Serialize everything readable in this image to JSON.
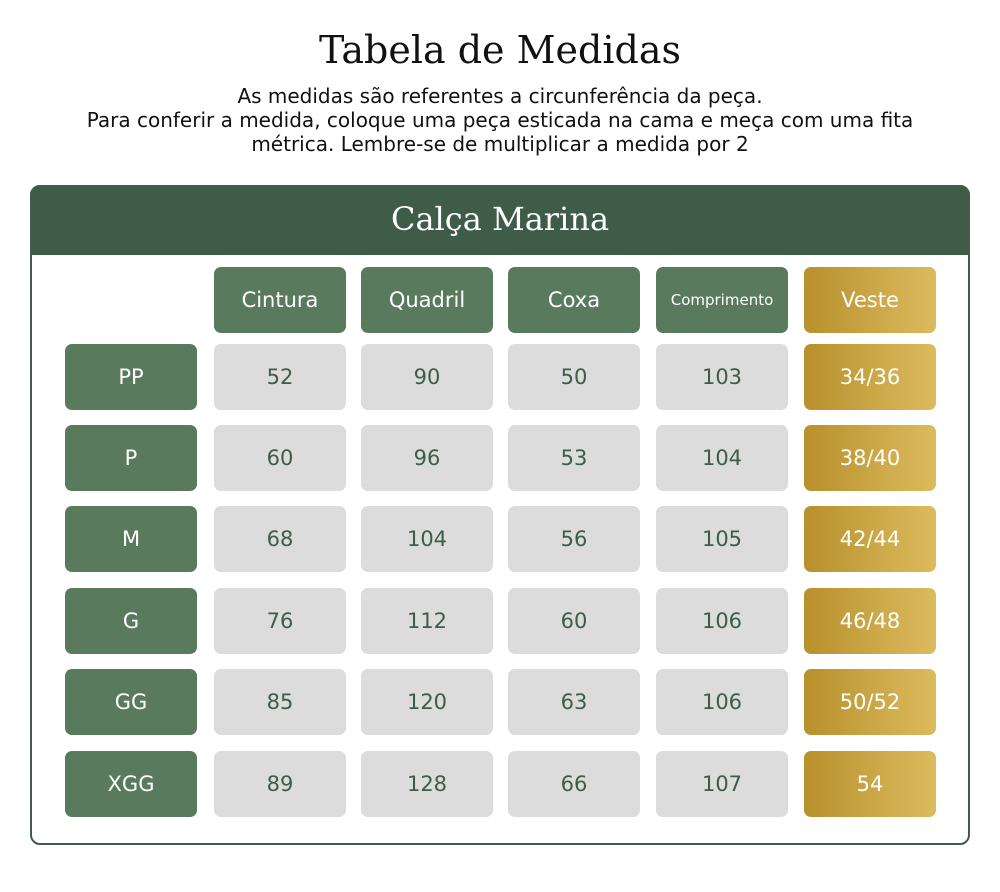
{
  "header": {
    "title": "Tabela de Medidas",
    "subtitle": [
      "As medidas são referentes a circunferência da peça.",
      "Para conferir a medida, coloque uma peça esticada na cama e meça com uma fita",
      "métrica. Lembre-se de multiplicar a medida por 2"
    ]
  },
  "table": {
    "title": "Calça Marina",
    "columns": [
      "Cintura",
      "Quadril",
      "Coxa",
      "Comprimento",
      "Veste"
    ],
    "rows": [
      {
        "size": "PP",
        "values": [
          52,
          90,
          50,
          103,
          "34/36"
        ]
      },
      {
        "size": "P",
        "values": [
          60,
          96,
          53,
          104,
          "38/40"
        ]
      },
      {
        "size": "M",
        "values": [
          68,
          104,
          56,
          105,
          "42/44"
        ]
      },
      {
        "size": "G",
        "values": [
          76,
          112,
          60,
          106,
          "46/48"
        ]
      },
      {
        "size": "GG",
        "values": [
          85,
          120,
          63,
          106,
          "50/52"
        ]
      },
      {
        "size": "XGG",
        "values": [
          89,
          128,
          66,
          107,
          "54"
        ]
      }
    ]
  }
}
